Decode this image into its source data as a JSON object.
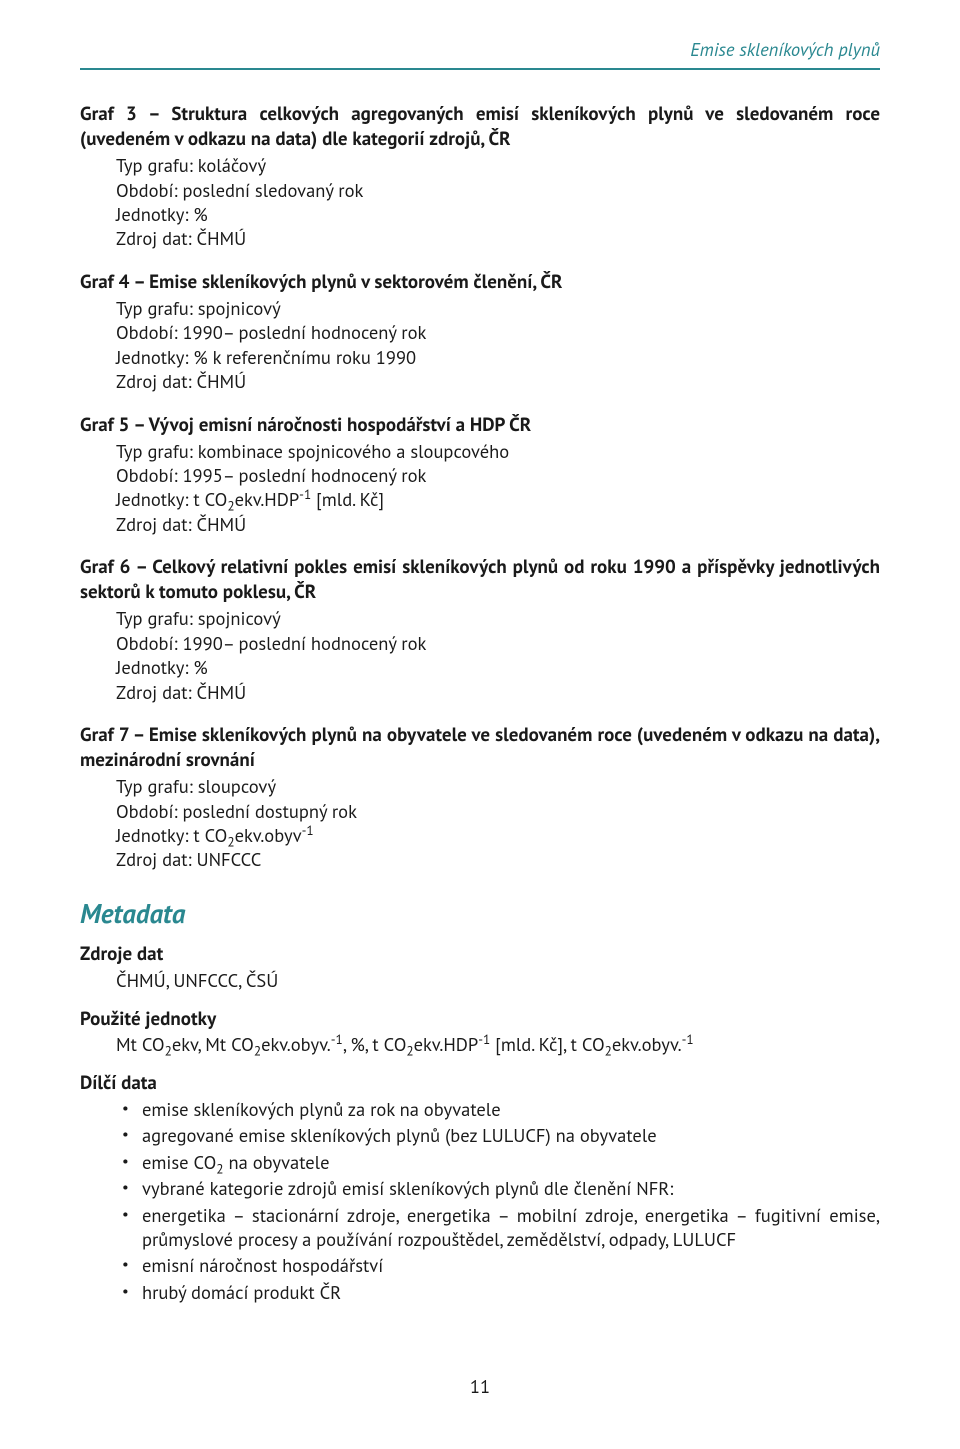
{
  "header": {
    "right": "Emise skleníkových plynů"
  },
  "grafs": [
    {
      "title": "Graf 3 – Struktura celkových agregovaných emisí skleníkových plynů ve sledovaném roce (uvedeném v odkazu na data) dle kategorií zdrojů, ČR",
      "lines": [
        "Typ grafu: koláčový",
        "Období: poslední sledovaný rok",
        "Jednotky: %",
        "Zdroj dat: ČHMÚ"
      ]
    },
    {
      "title": "Graf 4 – Emise skleníkových plynů v sektorovém členění, ČR",
      "lines": [
        "Typ grafu: spojnicový",
        "Období: 1990– poslední hodnocený rok",
        "Jednotky: % k referenčnímu roku 1990",
        "Zdroj dat: ČHMÚ"
      ]
    },
    {
      "title": "Graf 5 – Vývoj emisní náročnosti hospodářství a HDP ČR",
      "lines_html": [
        "Typ grafu: kombinace spojnicového a sloupcového",
        "Období: 1995– poslední hodnocený rok",
        "Jednotky: t CO<sub>2</sub>ekv.HDP<sup>-1</sup> [mld. Kč]",
        "Zdroj dat: ČHMÚ"
      ]
    },
    {
      "title": "Graf 6 – Celkový relativní pokles emisí skleníkových plynů od roku 1990 a příspěvky jednotlivých sektorů k tomuto poklesu, ČR",
      "lines": [
        "Typ grafu: spojnicový",
        "Období: 1990– poslední hodnocený rok",
        "Jednotky: %",
        "Zdroj dat: ČHMÚ"
      ]
    },
    {
      "title": "Graf 7 – Emise skleníkových plynů na obyvatele ve sledovaném roce (uvedeném v odkazu na data), mezinárodní srovnání",
      "lines_html": [
        "Typ grafu: sloupcový",
        "Období: poslední dostupný rok",
        "Jednotky: t CO<sub>2</sub>ekv.obyv<sup>-1</sup>",
        "Zdroj dat: UNFCCC"
      ]
    }
  ],
  "metadata": {
    "heading": "Metadata",
    "zdroje_label": "Zdroje dat",
    "zdroje_value": "ČHMÚ, UNFCCC, ČSÚ",
    "jednotky_label": "Použité jednotky",
    "jednotky_value_html": "Mt CO<sub>2</sub>ekv, Mt CO<sub>2</sub>ekv.obyv.<sup>-1</sup>, %, t CO<sub>2</sub>ekv.HDP<sup>-1</sup> [mld. Kč], t CO<sub>2</sub>ekv.obyv.<sup>-1</sup>",
    "dilci_label": "Dílčí data",
    "dilci_items_html": [
      "emise skleníkových plynů za rok na obyvatele",
      "agregované emise skleníkových plynů (bez LULUCF) na obyvatele",
      "emise CO<sub>2</sub> na obyvatele",
      "vybrané kategorie zdrojů emisí skleníkových plynů dle členění NFR:",
      "energetika – stacionární zdroje, energetika – mobilní zdroje, energetika – fugitivní emise, průmyslové procesy a používání rozpouštědel, zemědělství, odpady, LULUCF",
      "emisní náročnost hospodářství",
      "hrubý domácí produkt ČR"
    ]
  },
  "page_number": "11",
  "colors": {
    "teal": "#2a8890",
    "text": "#1a1a1a",
    "background": "#ffffff"
  }
}
